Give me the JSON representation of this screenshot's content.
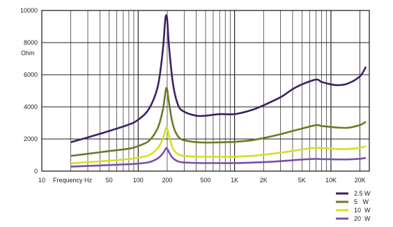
{
  "chart_data": {
    "type": "line",
    "title": "",
    "xlabel": "Frequency Hz",
    "ylabel": "Ohm",
    "x_scale": "log",
    "xlim": [
      10,
      25000
    ],
    "ylim": [
      0,
      10000
    ],
    "grid": true,
    "legend_position": "bottom-right",
    "y_ticks": [
      {
        "value": 0,
        "label": "0"
      },
      {
        "value": 2000,
        "label": "2000"
      },
      {
        "value": 4000,
        "label": "4000"
      },
      {
        "value": 6000,
        "label": "6000"
      },
      {
        "value": 8000,
        "label": "8000"
      },
      {
        "value": 10000,
        "label": "10000"
      }
    ],
    "x_ticks": [
      {
        "value": 10,
        "label": "10"
      },
      {
        "value": 50,
        "label": "50"
      },
      {
        "value": 100,
        "label": "100"
      },
      {
        "value": 200,
        "label": "200"
      },
      {
        "value": 500,
        "label": "500"
      },
      {
        "value": 1000,
        "label": "1K"
      },
      {
        "value": 2000,
        "label": "2K"
      },
      {
        "value": 5000,
        "label": "5K"
      },
      {
        "value": 10000,
        "label": "10K"
      },
      {
        "value": 20000,
        "label": "20K"
      }
    ],
    "x": [
      20,
      30,
      50,
      80,
      100,
      130,
      160,
      180,
      190,
      195,
      200,
      210,
      230,
      260,
      300,
      400,
      500,
      700,
      1000,
      1500,
      2000,
      3000,
      4000,
      5000,
      7000,
      8000,
      10000,
      12000,
      15000,
      20000,
      23000
    ],
    "series": [
      {
        "name": "2.5 W",
        "color": "#3d2160",
        "values": [
          1800,
          2100,
          2500,
          2900,
          3200,
          3900,
          5300,
          7500,
          9300,
          9700,
          9400,
          7600,
          5400,
          4100,
          3700,
          3450,
          3450,
          3550,
          3550,
          3800,
          4100,
          4600,
          5100,
          5400,
          5700,
          5550,
          5400,
          5350,
          5450,
          5900,
          6500
        ]
      },
      {
        "name": "5   W",
        "color": "#6b7a24",
        "values": [
          950,
          1080,
          1250,
          1400,
          1560,
          1900,
          2700,
          3800,
          4750,
          5150,
          5050,
          4150,
          2850,
          2150,
          1920,
          1800,
          1780,
          1790,
          1820,
          1920,
          2060,
          2300,
          2500,
          2650,
          2860,
          2810,
          2750,
          2710,
          2700,
          2870,
          3080
        ]
      },
      {
        "name": "10  W",
        "color": "#d4e021",
        "values": [
          480,
          560,
          650,
          750,
          840,
          1000,
          1450,
          2000,
          2500,
          2700,
          2650,
          2150,
          1400,
          1050,
          950,
          900,
          890,
          890,
          900,
          950,
          1020,
          1150,
          1250,
          1350,
          1450,
          1430,
          1400,
          1380,
          1380,
          1450,
          1550
        ]
      },
      {
        "name": "20  W",
        "color": "#7b4fa6",
        "values": [
          280,
          320,
          380,
          430,
          470,
          560,
          800,
          1100,
          1330,
          1430,
          1400,
          1150,
          800,
          600,
          540,
          510,
          500,
          500,
          500,
          530,
          560,
          620,
          680,
          720,
          760,
          750,
          740,
          730,
          730,
          770,
          820
        ]
      }
    ]
  }
}
